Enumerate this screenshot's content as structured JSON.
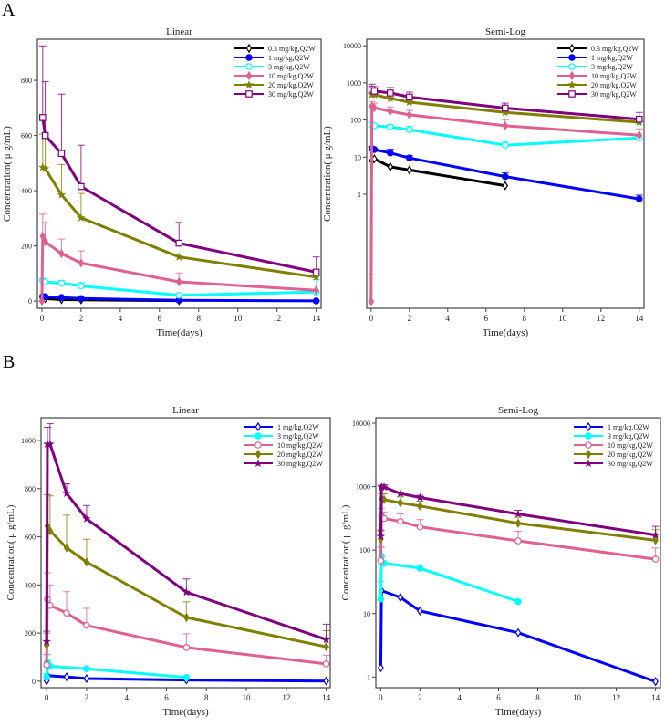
{
  "panel_labels": [
    "A",
    "B"
  ],
  "chart_data": [
    {
      "type": "line",
      "panel": "A",
      "title": "Linear",
      "xlabel": "Time(days)",
      "ylabel": "Concentration( μ g/mL)",
      "yscale": "linear",
      "xlim": [
        -0.23,
        14.25
      ],
      "ylim": [
        -26,
        949
      ],
      "xticks": [
        0,
        2,
        4,
        6,
        8,
        10,
        12,
        14
      ],
      "yticks": [
        0,
        200,
        400,
        600,
        800
      ],
      "grid": false,
      "legend": "top-right",
      "series_ref": "A"
    },
    {
      "type": "line",
      "panel": "A",
      "title": "Semi-Log",
      "xlabel": "Time(days)",
      "ylabel": "Concentration( μ g/mL)",
      "yscale": "log",
      "xlim": [
        -0.23,
        14.25
      ],
      "ylim": [
        0.00085,
        15000
      ],
      "xticks": [
        0,
        2,
        4,
        6,
        8,
        10,
        12,
        14
      ],
      "yticks": [
        1,
        10,
        100,
        1000,
        10000
      ],
      "grid": false,
      "legend": "top-right",
      "series_ref": "A"
    },
    {
      "type": "line",
      "panel": "B",
      "title": "Linear",
      "xlabel": "Time(days)",
      "ylabel": "Concentration( μ g/mL)",
      "yscale": "linear",
      "xlim": [
        -0.28,
        14.2
      ],
      "ylim": [
        -27,
        1095
      ],
      "xticks": [
        0,
        2,
        4,
        6,
        8,
        10,
        12,
        14
      ],
      "yticks": [
        0,
        200,
        400,
        600,
        800,
        1000
      ],
      "grid": false,
      "legend": "top-right",
      "series_ref": "B"
    },
    {
      "type": "line",
      "panel": "B",
      "title": "Semi-Log",
      "xlabel": "Time(days)",
      "ylabel": "Concentration( μ g/mL)",
      "yscale": "log",
      "xlim": [
        -0.25,
        14.25
      ],
      "ylim": [
        0.68,
        12200
      ],
      "xticks": [
        0,
        2,
        4,
        6,
        8,
        10,
        12,
        14
      ],
      "yticks": [
        1,
        10,
        100,
        1000,
        10000
      ],
      "grid": false,
      "legend": "top-right",
      "series_ref": "B"
    }
  ],
  "series": {
    "A": [
      {
        "name": "0.3 mg/kg,Q2W",
        "color": "#000000",
        "marker": "open-diamond",
        "x": [
          0.04,
          0.17,
          1,
          2,
          7
        ],
        "y": [
          8,
          9,
          5.5,
          4.5,
          1.7
        ],
        "err_upper": [
          null,
          null,
          null,
          null,
          null
        ]
      },
      {
        "name": "1 mg/kg,Q2W",
        "color": "#0000ff",
        "marker": "filled-circle",
        "x": [
          0.04,
          0.17,
          1,
          2,
          7,
          14
        ],
        "y": [
          17,
          16,
          13,
          9.5,
          3,
          0.75
        ],
        "err_upper": [
          19,
          null,
          16.5,
          11,
          3.8,
          0.95
        ]
      },
      {
        "name": "3 mg/kg,Q2W",
        "color": "#00ffff",
        "marker": "open-circle",
        "x": [
          0.04,
          0.17,
          1,
          2,
          7,
          14
        ],
        "y": [
          75,
          70,
          65,
          55,
          21,
          33
        ],
        "err_upper": [
          82,
          null,
          75,
          68,
          26,
          78
        ]
      },
      {
        "name": "10 mg/kg,Q2W",
        "color": "#e06090",
        "marker": "filled-diamond",
        "x": [
          0,
          0.04,
          0.17,
          1,
          2,
          7,
          14
        ],
        "y": [
          0.0013,
          235,
          215,
          172,
          138,
          70,
          39
        ],
        "err_upper": [
          0.0068,
          315,
          285,
          225,
          182,
          102,
          58
        ]
      },
      {
        "name": "20 mg/kg,Q2W",
        "color": "#808000",
        "marker": "filled-star",
        "x": [
          0.04,
          0.17,
          1,
          2,
          7,
          14
        ],
        "y": [
          485,
          480,
          385,
          302,
          160,
          87
        ],
        "err_upper": [
          605,
          605,
          495,
          390,
          null,
          115
        ]
      },
      {
        "name": "30 mg/kg,Q2W",
        "color": "#800080",
        "marker": "open-square",
        "x": [
          0.04,
          0.17,
          1,
          2,
          7,
          14
        ],
        "y": [
          665,
          600,
          535,
          415,
          210,
          105
        ],
        "err_upper": [
          925,
          795,
          750,
          565,
          285,
          160
        ]
      }
    ],
    "B": [
      {
        "name": "1 mg/kg,Q2W",
        "color": "#0000ff",
        "marker": "open-diamond",
        "x": [
          0,
          0.04,
          1,
          2,
          7,
          14
        ],
        "y": [
          1.4,
          23,
          18,
          11,
          5,
          0.85
        ],
        "err_upper": [
          null,
          null,
          null,
          null,
          null,
          null
        ]
      },
      {
        "name": "3 mg/kg,Q2W",
        "color": "#00ffff",
        "marker": "filled-circle",
        "x": [
          0,
          0.04,
          0.17,
          2,
          7
        ],
        "y": [
          17,
          80,
          62,
          52,
          15.5
        ],
        "err_upper": [
          32,
          110,
          null,
          null,
          null
        ]
      },
      {
        "name": "10 mg/kg,Q2W",
        "color": "#e06090",
        "marker": "open-circle",
        "x": [
          0,
          0.04,
          0.17,
          1,
          2,
          7,
          14
        ],
        "y": [
          68,
          340,
          315,
          283,
          232,
          140,
          72
        ],
        "err_upper": [
          112,
          450,
          400,
          372,
          303,
          197,
          108
        ]
      },
      {
        "name": "20 mg/kg,Q2W",
        "color": "#808000",
        "marker": "filled-diamond",
        "x": [
          0,
          0.04,
          0.17,
          1,
          2,
          7,
          14
        ],
        "y": [
          150,
          645,
          625,
          555,
          495,
          265,
          143
        ],
        "err_upper": [
          200,
          775,
          770,
          690,
          590,
          330,
          210
        ]
      },
      {
        "name": "30 mg/kg,Q2W",
        "color": "#800080",
        "marker": "filled-star",
        "x": [
          0,
          0.04,
          0.17,
          1,
          2,
          7,
          14
        ],
        "y": [
          165,
          985,
          985,
          780,
          675,
          370,
          173
        ],
        "err_upper": [
          208,
          1055,
          1070,
          820,
          730,
          425,
          237
        ]
      }
    ]
  }
}
